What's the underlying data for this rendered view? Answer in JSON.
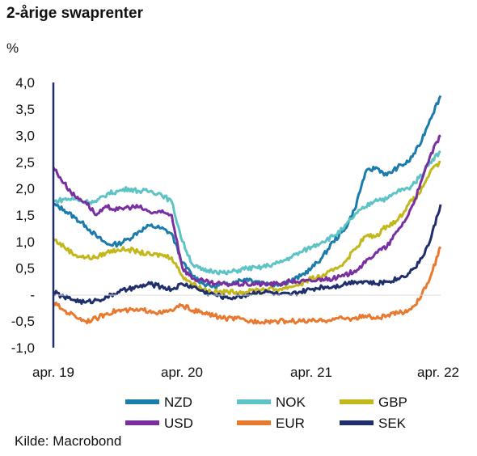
{
  "title": "2-årige swaprenter",
  "unit": "%",
  "source": "Kilde: Macrobond",
  "chart_data": {
    "type": "line",
    "title": "2-årige swaprenter",
    "ylabel": "%",
    "xlabel": "",
    "ylim": [
      -1.0,
      4.0
    ],
    "yticks": [
      "4,0",
      "3,5",
      "3,0",
      "2,5",
      "2,0",
      "1,5",
      "1,0",
      "0,5",
      "-",
      "-0,5",
      "-1,0"
    ],
    "xticks": [
      "apr. 19",
      "apr. 20",
      "apr. 21",
      "apr. 22"
    ],
    "x": [
      0,
      1,
      2,
      3,
      4,
      5,
      6,
      7,
      8,
      9,
      10,
      11,
      12,
      13,
      14,
      15,
      16,
      17,
      18,
      19,
      20,
      21,
      22,
      23,
      24,
      25,
      26,
      27,
      28,
      29,
      30,
      31,
      32,
      33,
      34,
      35,
      36
    ],
    "grid": false,
    "legend_position": "bottom",
    "series": [
      {
        "name": "NZD",
        "color": "#1b7cab",
        "values": [
          1.7,
          1.6,
          1.45,
          1.3,
          1.1,
          0.95,
          0.95,
          1.05,
          1.2,
          1.3,
          1.25,
          1.15,
          0.6,
          0.35,
          0.2,
          0.15,
          0.2,
          0.25,
          0.3,
          0.25,
          0.2,
          0.2,
          0.25,
          0.35,
          0.5,
          0.7,
          1.0,
          1.2,
          1.6,
          2.3,
          2.4,
          2.25,
          2.4,
          2.5,
          2.8,
          3.3,
          3.75
        ]
      },
      {
        "name": "NOK",
        "color": "#5ec3c4",
        "values": [
          1.75,
          1.8,
          1.8,
          1.75,
          1.75,
          1.9,
          1.95,
          2.0,
          1.95,
          1.95,
          1.9,
          1.75,
          1.0,
          0.55,
          0.45,
          0.45,
          0.4,
          0.45,
          0.5,
          0.5,
          0.55,
          0.6,
          0.7,
          0.8,
          0.9,
          1.0,
          1.1,
          1.25,
          1.5,
          1.65,
          1.8,
          1.8,
          1.95,
          2.0,
          2.2,
          2.5,
          2.7
        ]
      },
      {
        "name": "GBP",
        "color": "#c2b71b",
        "values": [
          1.05,
          0.9,
          0.75,
          0.7,
          0.7,
          0.8,
          0.85,
          0.85,
          0.8,
          0.75,
          0.75,
          0.7,
          0.35,
          0.2,
          0.1,
          0.05,
          0.05,
          0.05,
          0.05,
          0.1,
          0.1,
          0.1,
          0.15,
          0.2,
          0.3,
          0.35,
          0.45,
          0.6,
          0.85,
          1.1,
          1.1,
          1.3,
          1.4,
          1.7,
          1.9,
          2.3,
          2.5
        ]
      },
      {
        "name": "USD",
        "color": "#7a2fa0",
        "values": [
          2.4,
          2.1,
          1.85,
          1.75,
          1.5,
          1.65,
          1.6,
          1.65,
          1.65,
          1.55,
          1.55,
          1.5,
          0.5,
          0.3,
          0.25,
          0.2,
          0.2,
          0.2,
          0.2,
          0.2,
          0.2,
          0.2,
          0.25,
          0.25,
          0.25,
          0.3,
          0.3,
          0.35,
          0.45,
          0.6,
          0.8,
          0.9,
          1.2,
          1.5,
          2.0,
          2.6,
          3.0
        ]
      },
      {
        "name": "EUR",
        "color": "#e8792e",
        "values": [
          -0.15,
          -0.3,
          -0.4,
          -0.5,
          -0.45,
          -0.35,
          -0.3,
          -0.3,
          -0.3,
          -0.3,
          -0.35,
          -0.3,
          -0.2,
          -0.3,
          -0.35,
          -0.4,
          -0.45,
          -0.45,
          -0.5,
          -0.5,
          -0.5,
          -0.5,
          -0.5,
          -0.5,
          -0.5,
          -0.5,
          -0.45,
          -0.45,
          -0.45,
          -0.4,
          -0.45,
          -0.4,
          -0.35,
          -0.3,
          -0.1,
          0.3,
          0.9
        ]
      },
      {
        "name": "SEK",
        "color": "#1f2f6b",
        "values": [
          0.05,
          -0.05,
          -0.1,
          -0.15,
          -0.1,
          -0.05,
          0.05,
          0.1,
          0.15,
          0.2,
          0.15,
          0.1,
          0.2,
          0.15,
          0.05,
          0.0,
          -0.05,
          -0.05,
          0.0,
          0.05,
          0.05,
          0.0,
          0.0,
          0.05,
          0.1,
          0.15,
          0.15,
          0.2,
          0.25,
          0.25,
          0.2,
          0.25,
          0.3,
          0.4,
          0.6,
          1.0,
          1.7
        ]
      }
    ]
  }
}
